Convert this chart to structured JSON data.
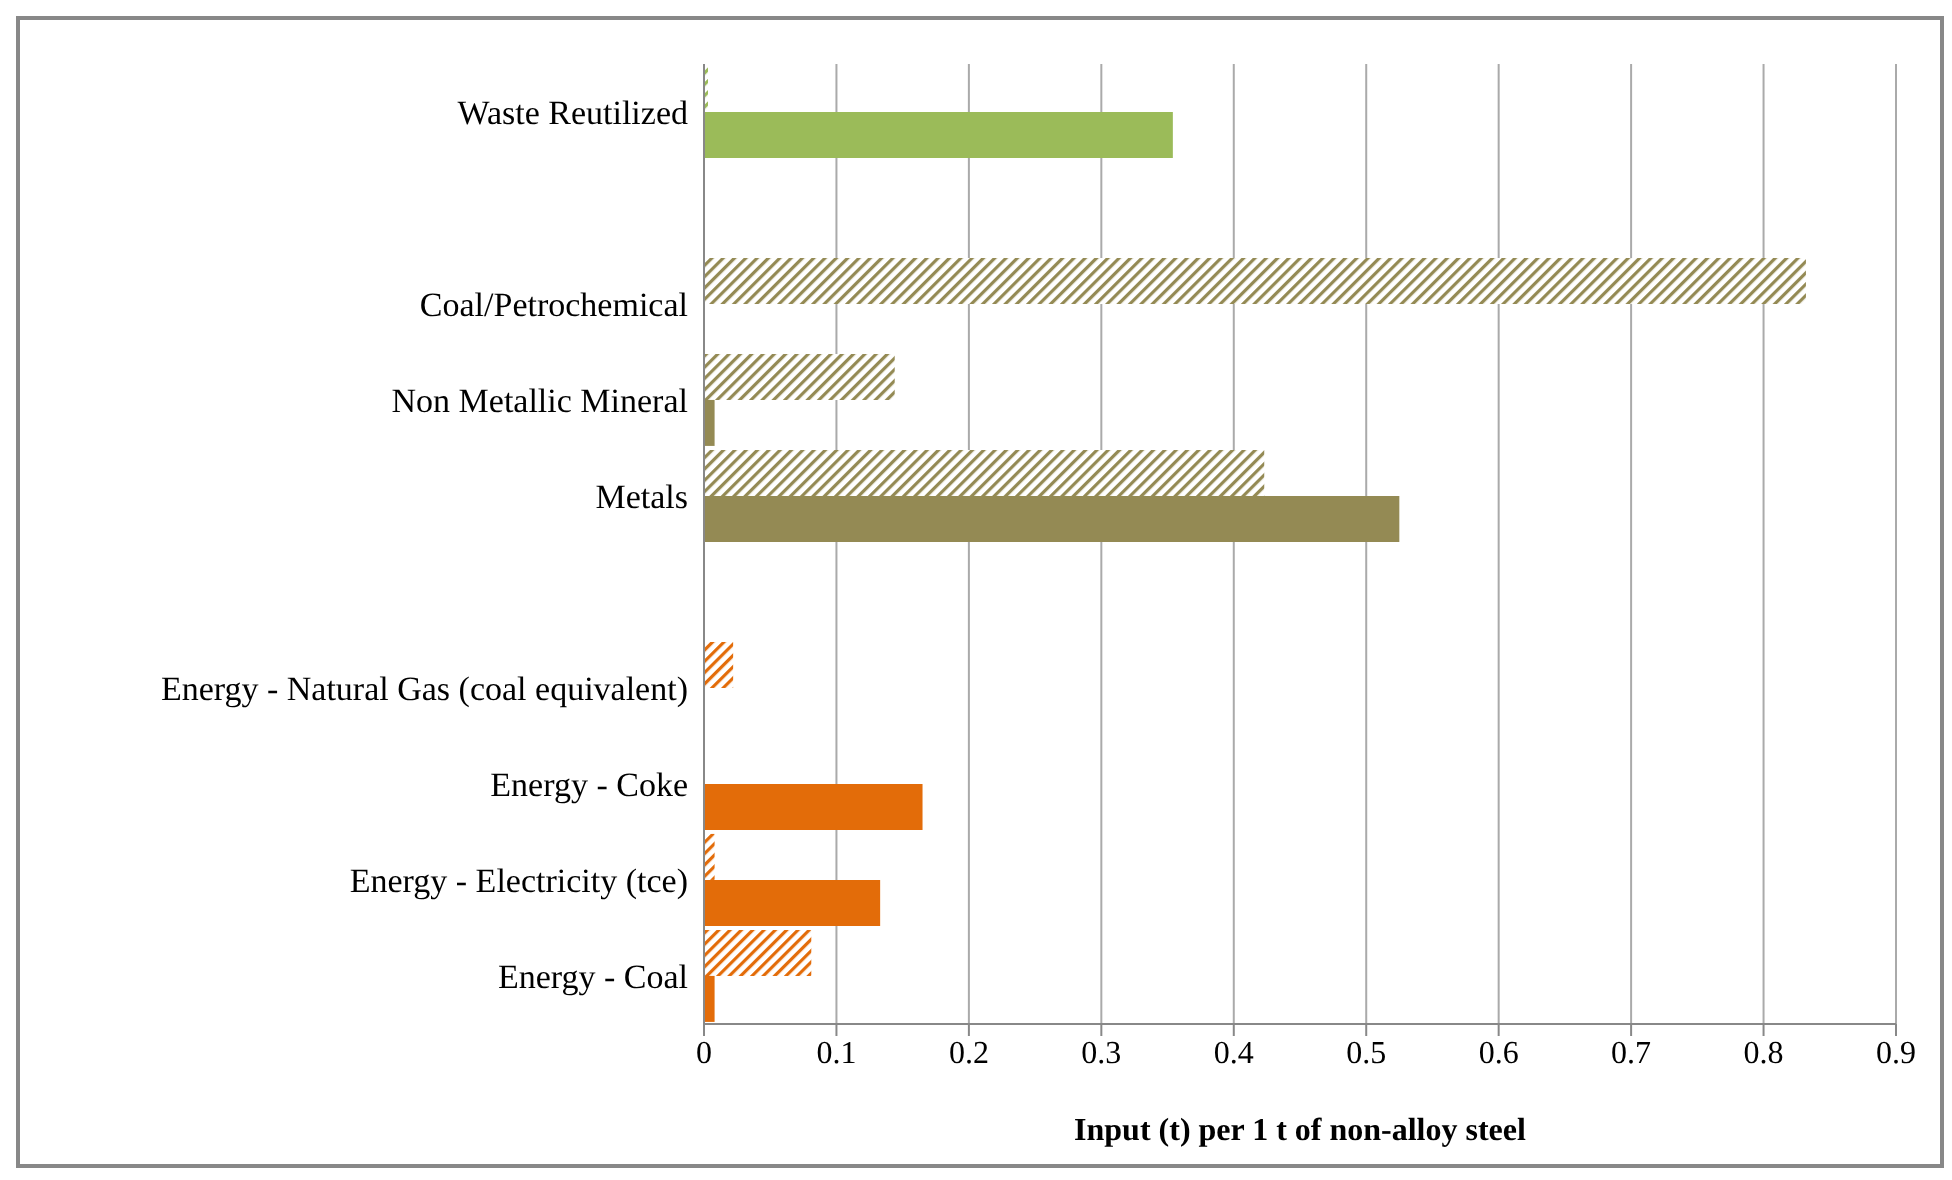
{
  "chart_data": {
    "type": "bar",
    "orientation": "horizontal",
    "xlabel": "Input (t) per 1 t of non-alloy steel",
    "categories": [
      "Waste Reutilized",
      null,
      "Coal/Petrochemical",
      "Non Metallic Mineral",
      "Metals",
      null,
      "Energy - Natural Gas (coal equivalent)",
      "Energy - Coke",
      "Energy - Electricity (tce)",
      "Energy - Coal"
    ],
    "series": [
      {
        "colors": [
          "#9bbb59",
          null,
          "#948a54",
          "#948a54",
          "#948a54",
          null,
          "#e36c09",
          "#e36c09",
          "#e36c09",
          "#e36c09"
        ],
        "values": [
          0.003,
          null,
          0.832,
          0.144,
          0.423,
          null,
          0.022,
          null,
          0.008,
          0.081
        ]
      },
      {
        "colors": [
          "#9bbb59",
          null,
          "#948a54",
          "#948a54",
          "#948a54",
          null,
          "#e36c09",
          "#e36c09",
          "#e36c09",
          "#e36c09"
        ],
        "values": [
          0.354,
          null,
          null,
          0.008,
          0.525,
          null,
          null,
          0.165,
          0.133,
          0.008
        ]
      }
    ],
    "xlim": [
      0,
      0.9
    ],
    "xticks": [
      0,
      0.1,
      0.2,
      0.3,
      0.4,
      0.5,
      0.6,
      0.7,
      0.8,
      0.9
    ],
    "grid": "x",
    "legend": false
  }
}
